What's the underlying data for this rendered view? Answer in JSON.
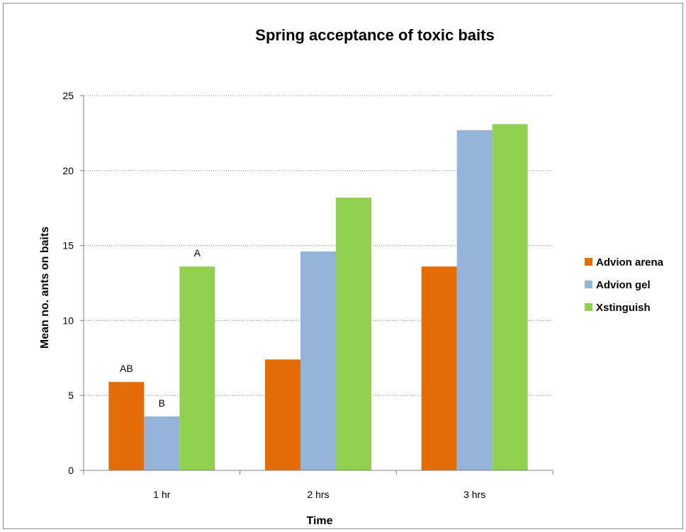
{
  "chart_data": {
    "type": "bar",
    "title": "Spring acceptance of toxic baits",
    "xlabel": "Time",
    "ylabel": "Mean no. ants on baits",
    "categories": [
      "1 hr",
      "2 hrs",
      "3 hrs"
    ],
    "ylim": [
      0,
      25
    ],
    "yticks": [
      0,
      5,
      10,
      15,
      20,
      25
    ],
    "grid": "horizontal dotted",
    "legend": "right",
    "series": [
      {
        "name": "Advion arena",
        "color": "#e36c0a",
        "values": [
          5.9,
          7.4,
          13.6
        ]
      },
      {
        "name": "Advion gel",
        "color": "#95b3d7",
        "values": [
          3.6,
          14.6,
          22.7
        ]
      },
      {
        "name": "Xstinguish",
        "color": "#92d050",
        "values": [
          13.6,
          18.2,
          23.1
        ]
      }
    ],
    "annotations": [
      {
        "category": "1 hr",
        "series": "Advion arena",
        "text": "AB"
      },
      {
        "category": "1 hr",
        "series": "Advion gel",
        "text": "B"
      },
      {
        "category": "1 hr",
        "series": "Xstinguish",
        "text": "A"
      }
    ]
  }
}
